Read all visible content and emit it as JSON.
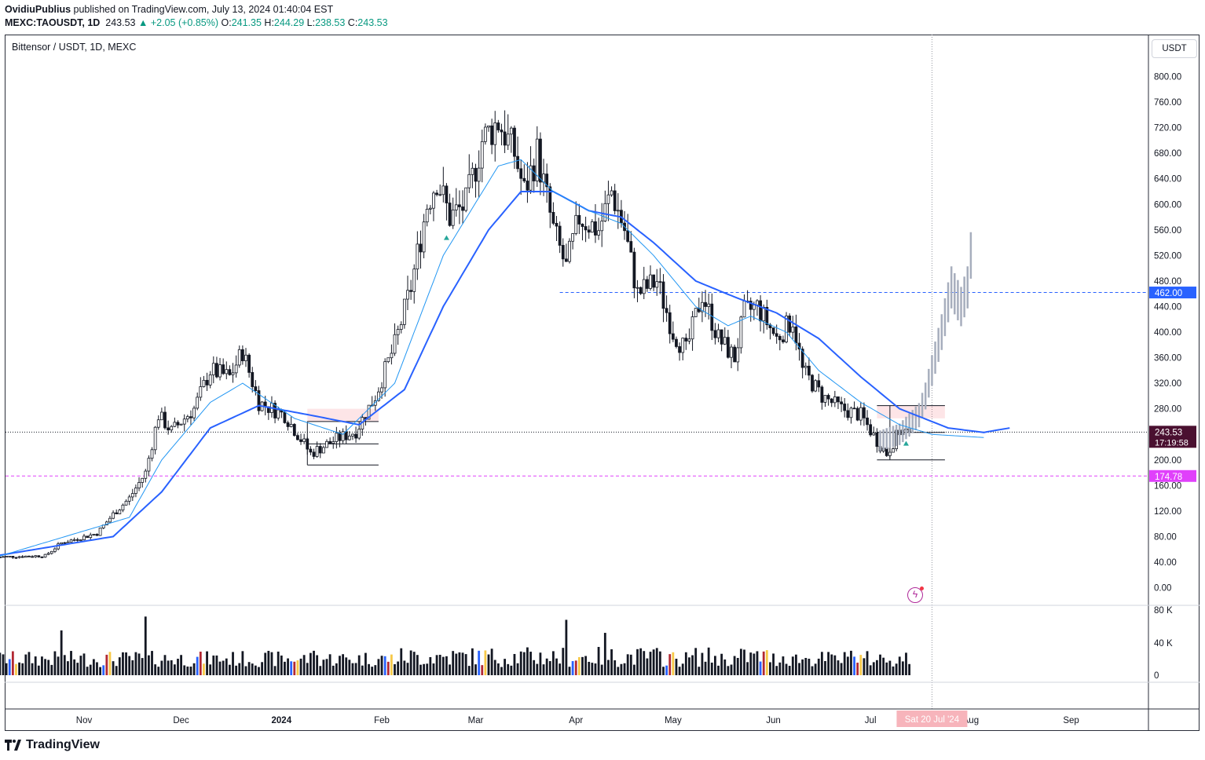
{
  "header": {
    "author": "OvidiuPublius",
    "published_text": "published on TradingView.com, July 13, 2024 01:40:04 EST",
    "symbol": "MEXC:TAOUSDT, 1D",
    "last": "243.53",
    "change": "+2.05 (+0.85%)",
    "o_label": "O:",
    "o_val": "241.35",
    "h_label": "H:",
    "h_val": "244.29",
    "l_label": "L:",
    "l_val": "238.53",
    "c_label": "C:",
    "c_val": "243.53"
  },
  "legend": "Bittensor / USDT, 1D, MEXC",
  "unit_button": "USDT",
  "countdown": "17:19:58",
  "crosshair_date": "Sat 20 Jul '24",
  "brand": "TradingView",
  "colors": {
    "up": "#ffffff",
    "down": "#131722",
    "wick": "#131722",
    "ema_fast": "#2196f3",
    "ema_slow": "#2962ff",
    "projection": "#a7aebd",
    "level_462": "#2962ff",
    "level_174": "#e040fb",
    "last_price_bg": "#4a1030",
    "volume": "#131722",
    "vol_blue": "#2962ff",
    "vol_red": "#b22833",
    "vol_yellow": "#f7c948"
  },
  "chart_data": {
    "type": "candlestick",
    "title": "Bittensor / USDT, 1D, MEXC",
    "y_axis": {
      "min": 0,
      "max": 800,
      "step": 40,
      "unit": "USDT",
      "ticks": [
        "800.00",
        "760.00",
        "720.00",
        "680.00",
        "640.00",
        "600.00",
        "560.00",
        "520.00",
        "480.00",
        "440.00",
        "400.00",
        "360.00",
        "320.00",
        "280.00",
        "240.00",
        "200.00",
        "160.00",
        "120.00",
        "80.00",
        "40.00",
        "0.00"
      ]
    },
    "x_axis": {
      "labels": [
        "Nov",
        "Dec",
        "2024",
        "Feb",
        "Mar",
        "Apr",
        "May",
        "Jun",
        "Jul",
        "Aug",
        "Sep"
      ]
    },
    "price_labels": [
      {
        "value": 462.0,
        "text": "462.00"
      },
      {
        "value": 243.53,
        "text": "243.53"
      },
      {
        "value": 174.78,
        "text": "174.78"
      }
    ],
    "horizontal_levels": [
      {
        "value": 462.0,
        "style": "dashed",
        "color": "blue",
        "from": "2024-03-27"
      },
      {
        "value": 174.78,
        "style": "dashed",
        "color": "magenta"
      },
      {
        "value": 243.53,
        "style": "dotted",
        "color": "gray"
      }
    ],
    "volume_axis": {
      "ticks": [
        "80 K",
        "40 K",
        "0"
      ]
    },
    "price_path": [
      {
        "date": "2023-10-05",
        "close": 48
      },
      {
        "date": "2023-10-20",
        "close": 50
      },
      {
        "date": "2023-10-25",
        "close": 70
      },
      {
        "date": "2023-11-05",
        "close": 85
      },
      {
        "date": "2023-11-10",
        "close": 115
      },
      {
        "date": "2023-11-15",
        "close": 140
      },
      {
        "date": "2023-11-20",
        "close": 180
      },
      {
        "date": "2023-11-24",
        "close": 270
      },
      {
        "date": "2023-11-28",
        "close": 245
      },
      {
        "date": "2023-12-05",
        "close": 280
      },
      {
        "date": "2023-12-10",
        "close": 340
      },
      {
        "date": "2023-12-16",
        "close": 330
      },
      {
        "date": "2023-12-20",
        "close": 370
      },
      {
        "date": "2023-12-25",
        "close": 290
      },
      {
        "date": "2024-01-02",
        "close": 270
      },
      {
        "date": "2024-01-10",
        "close": 210
      },
      {
        "date": "2024-01-17",
        "close": 230
      },
      {
        "date": "2024-01-24",
        "close": 245
      },
      {
        "date": "2024-01-30",
        "close": 300
      },
      {
        "date": "2024-02-05",
        "close": 380
      },
      {
        "date": "2024-02-10",
        "close": 470
      },
      {
        "date": "2024-02-15",
        "close": 600
      },
      {
        "date": "2024-02-18",
        "close": 640
      },
      {
        "date": "2024-02-22",
        "close": 580
      },
      {
        "date": "2024-02-27",
        "close": 600
      },
      {
        "date": "2024-03-03",
        "close": 700
      },
      {
        "date": "2024-03-08",
        "close": 730
      },
      {
        "date": "2024-03-13",
        "close": 680
      },
      {
        "date": "2024-03-16",
        "close": 620
      },
      {
        "date": "2024-03-20",
        "close": 680
      },
      {
        "date": "2024-03-25",
        "close": 560
      },
      {
        "date": "2024-03-29",
        "close": 500
      },
      {
        "date": "2024-04-02",
        "close": 580
      },
      {
        "date": "2024-04-08",
        "close": 560
      },
      {
        "date": "2024-04-12",
        "close": 620
      },
      {
        "date": "2024-04-16",
        "close": 560
      },
      {
        "date": "2024-04-20",
        "close": 460
      },
      {
        "date": "2024-04-26",
        "close": 480
      },
      {
        "date": "2024-05-01",
        "close": 400
      },
      {
        "date": "2024-05-05",
        "close": 370
      },
      {
        "date": "2024-05-10",
        "close": 460
      },
      {
        "date": "2024-05-15",
        "close": 390
      },
      {
        "date": "2024-05-20",
        "close": 360
      },
      {
        "date": "2024-05-23",
        "close": 430
      },
      {
        "date": "2024-05-27",
        "close": 440
      },
      {
        "date": "2024-06-02",
        "close": 390
      },
      {
        "date": "2024-06-07",
        "close": 420
      },
      {
        "date": "2024-06-10",
        "close": 340
      },
      {
        "date": "2024-06-16",
        "close": 300
      },
      {
        "date": "2024-06-22",
        "close": 280
      },
      {
        "date": "2024-06-28",
        "close": 270
      },
      {
        "date": "2024-07-03",
        "close": 230
      },
      {
        "date": "2024-07-06",
        "close": 210
      },
      {
        "date": "2024-07-10",
        "close": 245
      },
      {
        "date": "2024-07-13",
        "close": 243.53
      }
    ],
    "ema_fast_path": [
      {
        "date": "2023-10-05",
        "value": 48
      },
      {
        "date": "2023-11-15",
        "value": 110
      },
      {
        "date": "2023-11-25",
        "value": 200
      },
      {
        "date": "2023-12-10",
        "value": 290
      },
      {
        "date": "2023-12-20",
        "value": 320
      },
      {
        "date": "2024-01-05",
        "value": 265
      },
      {
        "date": "2024-01-20",
        "value": 240
      },
      {
        "date": "2024-02-05",
        "value": 320
      },
      {
        "date": "2024-02-20",
        "value": 520
      },
      {
        "date": "2024-03-08",
        "value": 660
      },
      {
        "date": "2024-03-15",
        "value": 670
      },
      {
        "date": "2024-03-25",
        "value": 620
      },
      {
        "date": "2024-04-05",
        "value": 590
      },
      {
        "date": "2024-04-15",
        "value": 570
      },
      {
        "date": "2024-04-25",
        "value": 520
      },
      {
        "date": "2024-05-08",
        "value": 440
      },
      {
        "date": "2024-05-18",
        "value": 410
      },
      {
        "date": "2024-05-25",
        "value": 425
      },
      {
        "date": "2024-06-05",
        "value": 400
      },
      {
        "date": "2024-06-15",
        "value": 340
      },
      {
        "date": "2024-06-28",
        "value": 290
      },
      {
        "date": "2024-07-10",
        "value": 255
      },
      {
        "date": "2024-07-20",
        "value": 240
      },
      {
        "date": "2024-08-05",
        "value": 235
      }
    ],
    "ema_slow_path": [
      {
        "date": "2023-10-05",
        "value": 50
      },
      {
        "date": "2023-11-10",
        "value": 80
      },
      {
        "date": "2023-11-25",
        "value": 150
      },
      {
        "date": "2023-12-10",
        "value": 250
      },
      {
        "date": "2023-12-25",
        "value": 285
      },
      {
        "date": "2024-01-10",
        "value": 270
      },
      {
        "date": "2024-01-25",
        "value": 255
      },
      {
        "date": "2024-02-08",
        "value": 310
      },
      {
        "date": "2024-02-20",
        "value": 440
      },
      {
        "date": "2024-03-05",
        "value": 560
      },
      {
        "date": "2024-03-15",
        "value": 620
      },
      {
        "date": "2024-03-25",
        "value": 620
      },
      {
        "date": "2024-04-05",
        "value": 590
      },
      {
        "date": "2024-04-15",
        "value": 580
      },
      {
        "date": "2024-04-25",
        "value": 540
      },
      {
        "date": "2024-05-08",
        "value": 480
      },
      {
        "date": "2024-05-20",
        "value": 455
      },
      {
        "date": "2024-06-02",
        "value": 430
      },
      {
        "date": "2024-06-15",
        "value": 390
      },
      {
        "date": "2024-06-28",
        "value": 330
      },
      {
        "date": "2024-07-10",
        "value": 280
      },
      {
        "date": "2024-07-25",
        "value": 250
      },
      {
        "date": "2024-08-05",
        "value": 243
      },
      {
        "date": "2024-08-13",
        "value": 250
      }
    ],
    "projection_path": [
      {
        "date": "2024-07-04",
        "value": 230
      },
      {
        "date": "2024-07-10",
        "value": 240
      },
      {
        "date": "2024-07-16",
        "value": 270
      },
      {
        "date": "2024-07-18",
        "value": 300
      },
      {
        "date": "2024-07-21",
        "value": 360
      },
      {
        "date": "2024-07-23",
        "value": 400
      },
      {
        "date": "2024-07-26",
        "value": 470
      },
      {
        "date": "2024-07-29",
        "value": 440
      },
      {
        "date": "2024-07-31",
        "value": 470
      },
      {
        "date": "2024-08-01",
        "value": 520
      }
    ]
  }
}
